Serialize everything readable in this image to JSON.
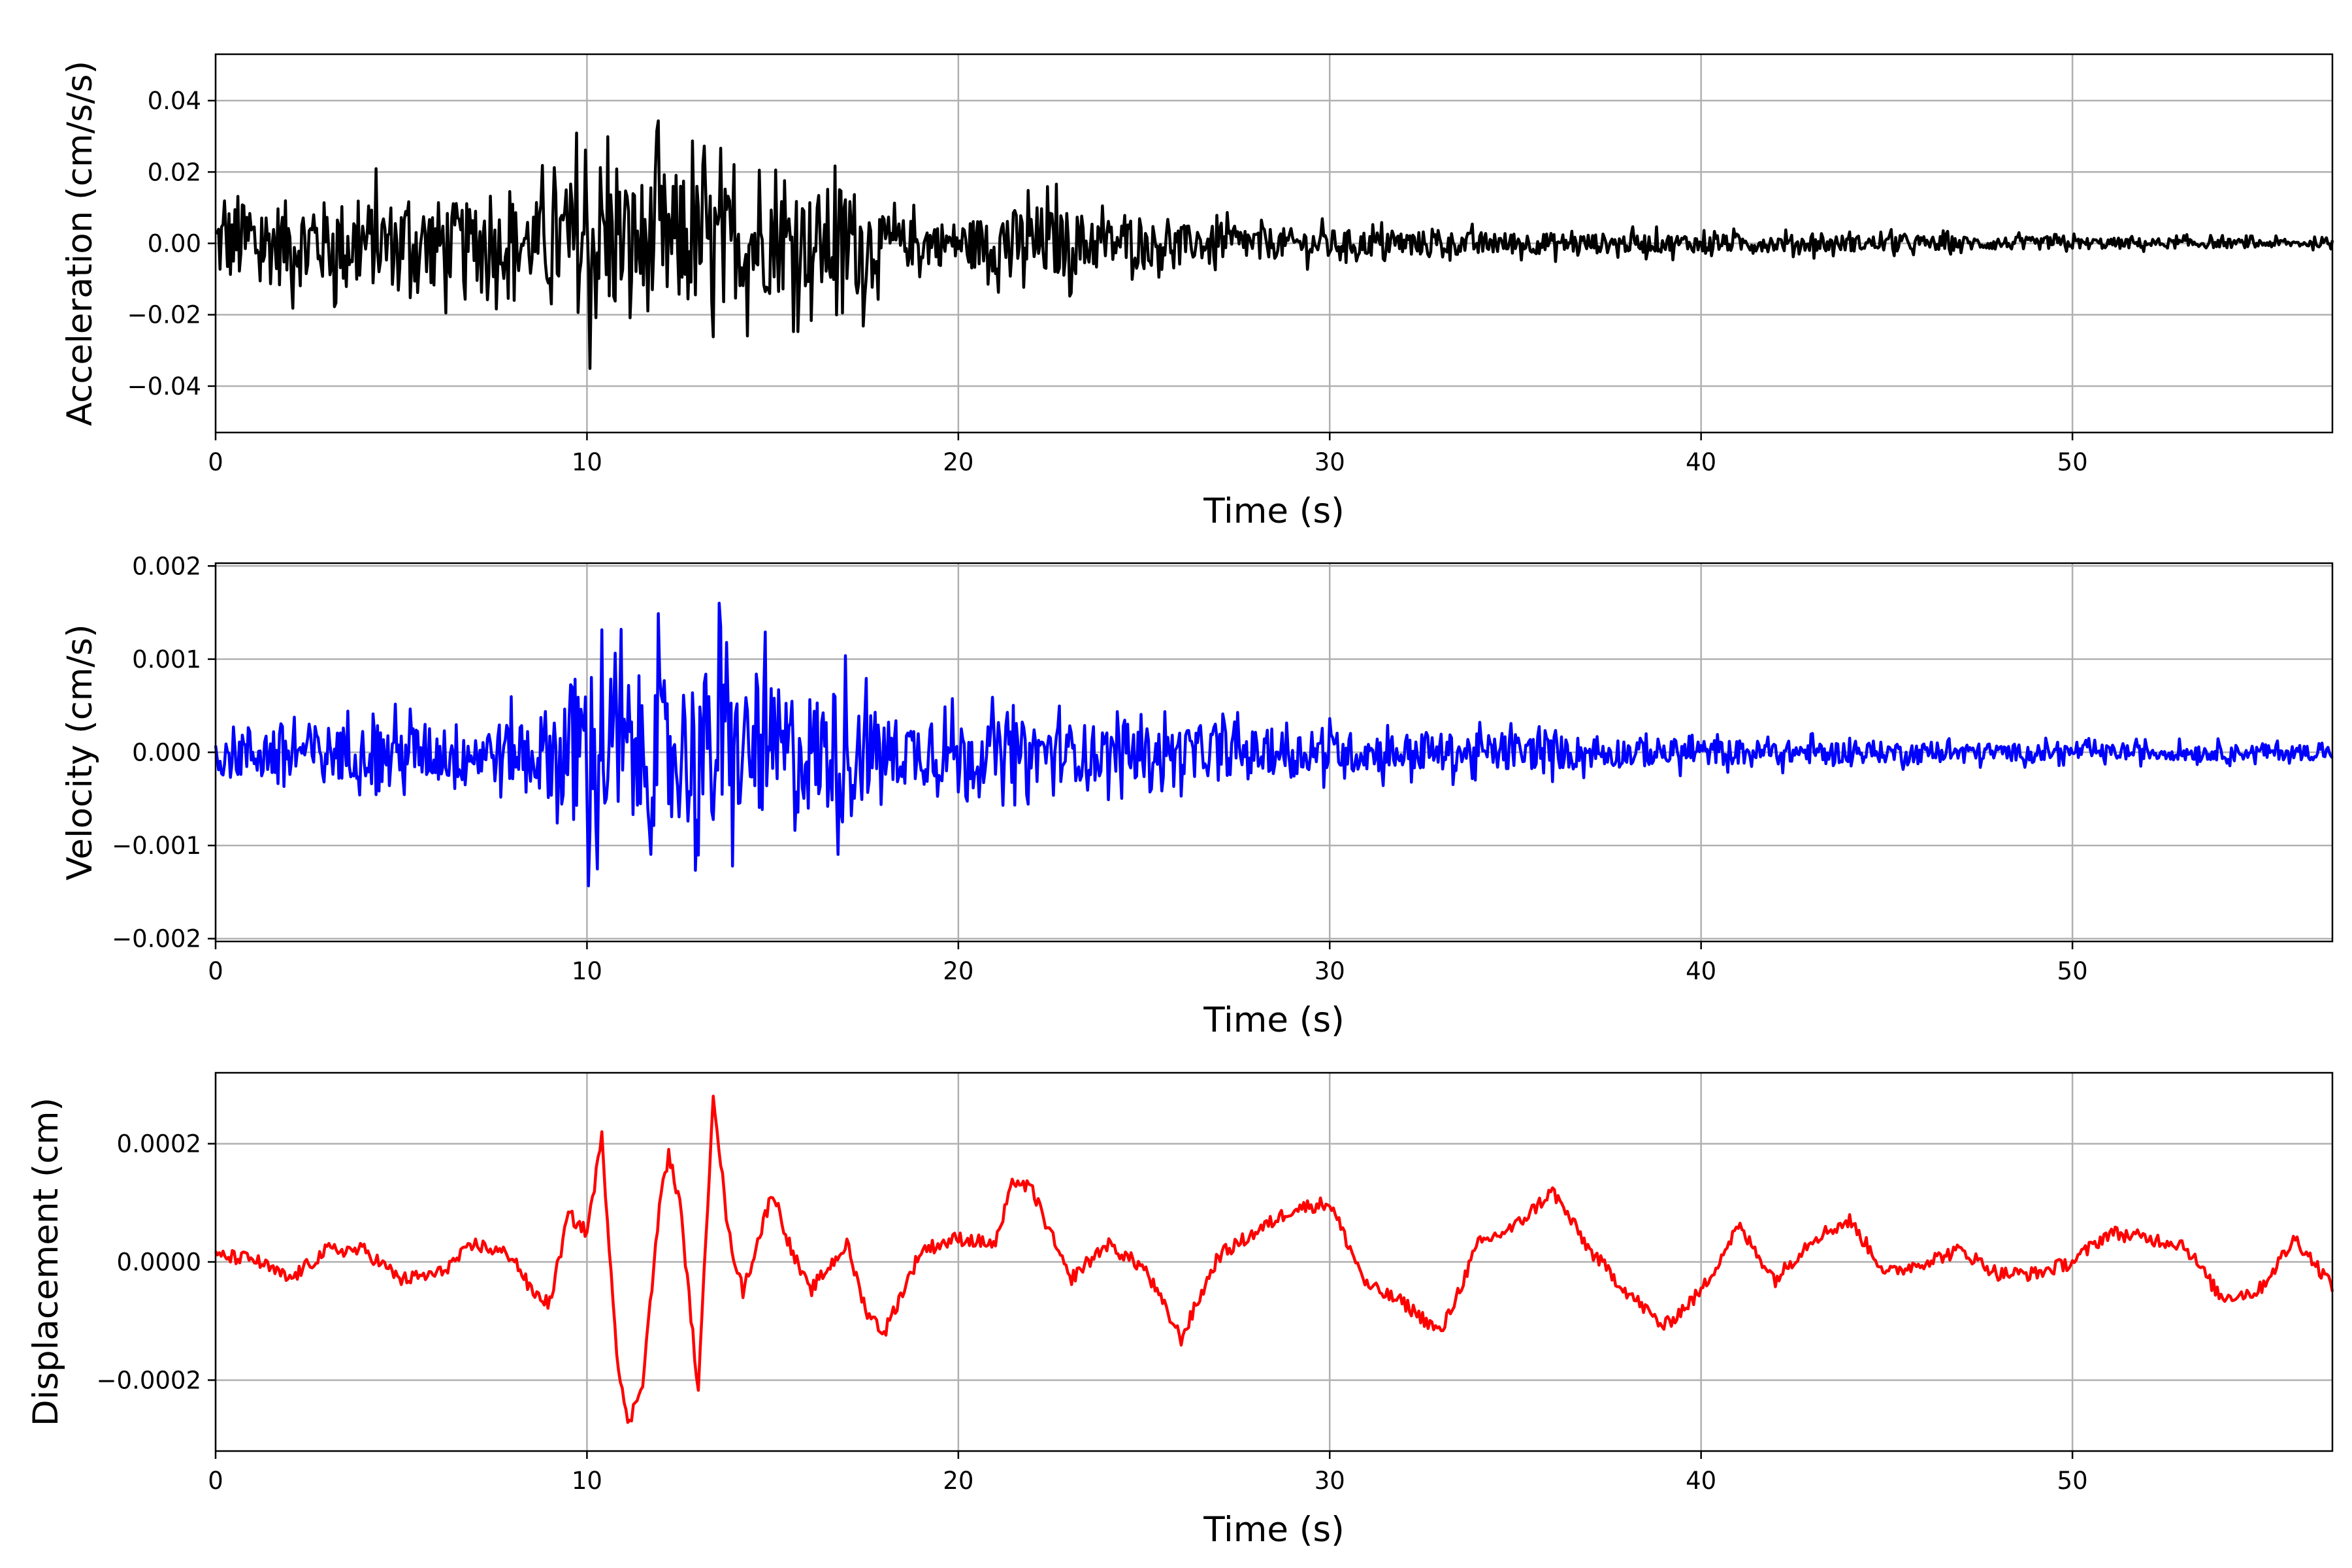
{
  "chart_data": [
    {
      "type": "line",
      "xlabel": "Time (s)",
      "ylabel": "Acceleration (cm/s/s)",
      "xlim": [
        0,
        57
      ],
      "ylim": [
        -0.053,
        0.053
      ],
      "xticks": [
        0,
        10,
        20,
        30,
        40,
        50
      ],
      "yticks": [
        -0.04,
        -0.02,
        0.0,
        0.02,
        0.04
      ],
      "ytick_labels": [
        "−0.04",
        "−0.02",
        "0.00",
        "0.02",
        "0.04"
      ],
      "grid": true,
      "color": "#000000",
      "series": [
        {
          "x": [
            0,
            2,
            4,
            6,
            8,
            9,
            10,
            10.4,
            11,
            12,
            13,
            14,
            15,
            16,
            17,
            18,
            20,
            22,
            25,
            30,
            35,
            40,
            45,
            50,
            55,
            57
          ],
          "envelope": [
            0.02,
            0.022,
            0.022,
            0.022,
            0.018,
            0.025,
            0.039,
            0.048,
            0.03,
            0.038,
            0.033,
            0.028,
            0.026,
            0.025,
            0.033,
            0.013,
            0.011,
            0.02,
            0.01,
            0.007,
            0.0055,
            0.0045,
            0.004,
            0.003,
            0.0022,
            0.0018
          ]
        }
      ]
    },
    {
      "type": "line",
      "xlabel": "Time (s)",
      "ylabel": "Velocity (cm/s)",
      "xlim": [
        0,
        57
      ],
      "ylim": [
        -0.00203,
        0.00203
      ],
      "xticks": [
        0,
        10,
        20,
        30,
        40,
        50
      ],
      "yticks": [
        -0.002,
        -0.001,
        0.0,
        0.001,
        0.002
      ],
      "ytick_labels": [
        "−0.002",
        "−0.001",
        "0.000",
        "0.001",
        "0.002"
      ],
      "grid": true,
      "color": "#0000ff",
      "series": [
        {
          "x": [
            0,
            2,
            4,
            6,
            8,
            9,
            10,
            10.5,
            11,
            12,
            13,
            13.5,
            14,
            15,
            16,
            17,
            18,
            20,
            22,
            25,
            30,
            35,
            40,
            45,
            50,
            55,
            57
          ],
          "envelope": [
            0.0005,
            0.0006,
            0.0005,
            0.0006,
            0.0006,
            0.0009,
            0.00185,
            0.0016,
            0.0015,
            0.0015,
            0.0015,
            0.0018,
            0.0013,
            0.0013,
            0.0012,
            0.0012,
            0.0007,
            0.0006,
            0.0006,
            0.0005,
            0.0004,
            0.00035,
            0.00025,
            0.0002,
            0.00015,
            0.00015,
            0.00015
          ]
        }
      ]
    },
    {
      "type": "line",
      "xlabel": "Time (s)",
      "ylabel": "Displacement (cm)",
      "xlim": [
        0,
        57
      ],
      "ylim": [
        -0.00032,
        0.00032
      ],
      "xticks": [
        0,
        10,
        20,
        30,
        40,
        50
      ],
      "yticks": [
        -0.0002,
        0.0,
        0.0002
      ],
      "ytick_labels": [
        "−0.0002",
        "0.0000",
        "0.0002"
      ],
      "grid": true,
      "color": "#ff0000",
      "series": [
        {
          "x": [
            0,
            1,
            2,
            3,
            4,
            5,
            6,
            7,
            8,
            8.5,
            9,
            9.5,
            10,
            10.4,
            10.8,
            11.1,
            11.5,
            12,
            12.2,
            12.5,
            13,
            13.4,
            13.8,
            14.2,
            15,
            15.5,
            16,
            16.5,
            17,
            17.5,
            18,
            19,
            20,
            21,
            21.5,
            22,
            23,
            24,
            25,
            26,
            27,
            28,
            29,
            30,
            31,
            32,
            33,
            34,
            35,
            36,
            37,
            38,
            39,
            40,
            41,
            42,
            43,
            44,
            45,
            46,
            47,
            48,
            49,
            50,
            51,
            52,
            53,
            54,
            55,
            56,
            57
          ],
          "y": [
            1e-05,
            5e-06,
            -3e-05,
            2e-05,
            2e-05,
            -3e-05,
            -2e-05,
            3e-05,
            1e-05,
            -5e-05,
            -7e-05,
            8e-05,
            5e-05,
            0.00021,
            -0.00015,
            -0.00028,
            -0.0002,
            0.00012,
            0.00018,
            0.0001,
            -0.00022,
            0.00029,
            5e-05,
            -5e-05,
            0.00012,
            2e-05,
            -5e-05,
            -1e-05,
            3e-05,
            -8e-05,
            -0.00012,
            2e-05,
            4e-05,
            3e-05,
            0.00014,
            0.00012,
            -3e-05,
            3e-05,
            -1e-05,
            -0.00013,
            1e-05,
            5e-05,
            9e-05,
            0.0001,
            -4e-05,
            -7e-05,
            -0.00012,
            3e-05,
            6e-05,
            0.00012,
            2e-05,
            -5e-05,
            -0.00011,
            -5e-05,
            6e-05,
            -3e-05,
            4e-05,
            7e-05,
            -2e-05,
            0.0,
            2e-05,
            -2e-05,
            -2e-05,
            0.0,
            5e-05,
            4e-05,
            3e-05,
            -6e-05,
            -5e-05,
            4e-05,
            -4e-05
          ]
        }
      ]
    }
  ]
}
